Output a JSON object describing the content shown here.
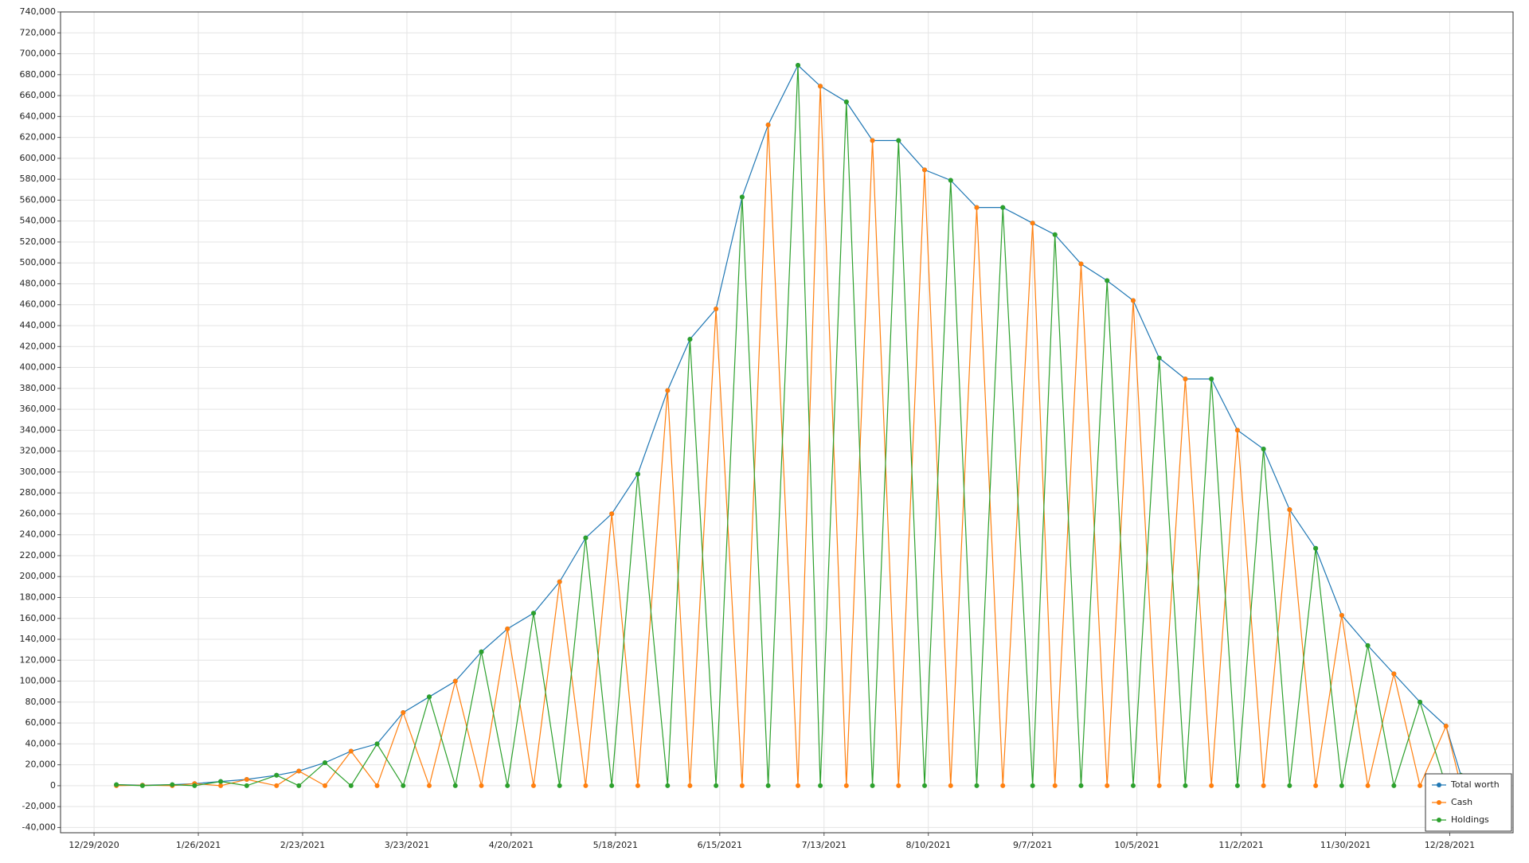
{
  "chart_data": {
    "type": "line",
    "x": [
      "1/4/2021",
      "1/11/2021",
      "1/19/2021",
      "1/25/2021",
      "2/1/2021",
      "2/8/2021",
      "2/16/2021",
      "2/22/2021",
      "3/1/2021",
      "3/8/2021",
      "3/15/2021",
      "3/22/2021",
      "3/29/2021",
      "4/5/2021",
      "4/12/2021",
      "4/19/2021",
      "4/26/2021",
      "5/3/2021",
      "5/10/2021",
      "5/17/2021",
      "5/24/2021",
      "6/1/2021",
      "6/7/2021",
      "6/14/2021",
      "6/21/2021",
      "6/28/2021",
      "7/6/2021",
      "7/12/2021",
      "7/19/2021",
      "7/26/2021",
      "8/2/2021",
      "8/9/2021",
      "8/16/2021",
      "8/23/2021",
      "8/30/2021",
      "9/7/2021",
      "9/13/2021",
      "9/20/2021",
      "9/27/2021",
      "10/4/2021",
      "10/11/2021",
      "10/18/2021",
      "10/25/2021",
      "11/1/2021",
      "11/8/2021",
      "11/15/2021",
      "11/22/2021",
      "11/29/2021",
      "12/6/2021",
      "12/13/2021",
      "12/20/2021",
      "12/27/2021",
      "12/31/2021"
    ],
    "series": [
      {
        "name": "Total worth",
        "color": "#1f77b4",
        "values": [
          1000,
          500,
          1000,
          2000,
          4000,
          6000,
          10000,
          14000,
          22000,
          33000,
          40000,
          70000,
          85000,
          100000,
          128000,
          150000,
          165000,
          195000,
          237000,
          260000,
          298000,
          378000,
          427000,
          456000,
          563000,
          632000,
          689000,
          669000,
          654000,
          617000,
          617000,
          589000,
          579000,
          553000,
          553000,
          538000,
          527000,
          499000,
          483000,
          464000,
          409000,
          389000,
          389000,
          340000,
          322000,
          264000,
          227000,
          163000,
          134000,
          107000,
          80000,
          57000,
          10000
        ]
      },
      {
        "name": "Cash",
        "color": "#ff7f0e",
        "values": [
          0,
          500,
          0,
          2000,
          0,
          6000,
          0,
          14000,
          0,
          33000,
          0,
          70000,
          0,
          100000,
          0,
          150000,
          0,
          195000,
          0,
          260000,
          0,
          378000,
          0,
          456000,
          0,
          632000,
          0,
          669000,
          0,
          617000,
          0,
          589000,
          0,
          553000,
          0,
          538000,
          0,
          499000,
          0,
          464000,
          0,
          389000,
          0,
          340000,
          0,
          264000,
          0,
          163000,
          0,
          107000,
          0,
          57000,
          0
        ]
      },
      {
        "name": "Holdings",
        "color": "#2ca02c",
        "values": [
          1000,
          0,
          1000,
          0,
          4000,
          0,
          10000,
          0,
          22000,
          0,
          40000,
          0,
          85000,
          0,
          128000,
          0,
          165000,
          0,
          237000,
          0,
          298000,
          0,
          427000,
          0,
          563000,
          0,
          689000,
          0,
          654000,
          0,
          617000,
          0,
          579000,
          0,
          553000,
          0,
          527000,
          0,
          483000,
          0,
          409000,
          0,
          389000,
          0,
          322000,
          0,
          227000,
          0,
          134000,
          0,
          80000,
          0,
          10000
        ]
      }
    ],
    "xlim": [
      "12/20/2020",
      "1/14/2022"
    ],
    "xticks": [
      "12/29/2020",
      "1/26/2021",
      "2/23/2021",
      "3/23/2021",
      "4/20/2021",
      "5/18/2021",
      "6/15/2021",
      "7/13/2021",
      "8/10/2021",
      "9/7/2021",
      "10/5/2021",
      "11/2/2021",
      "11/30/2021",
      "12/28/2021"
    ],
    "ylim": [
      -45000,
      740000
    ],
    "yticks": [
      {
        "value": -40000,
        "label": "-40,000"
      },
      {
        "value": -20000,
        "label": "-20,000"
      },
      0,
      {
        "value": 20000,
        "label": "20,000"
      },
      {
        "value": 40000,
        "label": "40,000"
      },
      {
        "value": 60000,
        "label": "60,000"
      },
      {
        "value": 80000,
        "label": "80,000"
      },
      {
        "value": 100000,
        "label": "100,000"
      },
      {
        "value": 120000,
        "label": "120,000"
      },
      {
        "value": 140000,
        "label": "140,000"
      },
      {
        "value": 160000,
        "label": "160,000"
      },
      {
        "value": 180000,
        "label": "180,000"
      },
      {
        "value": 200000,
        "label": "200,000"
      },
      {
        "value": 220000,
        "label": "220,000"
      },
      {
        "value": 240000,
        "label": "240,000"
      },
      {
        "value": 260000,
        "label": "260,000"
      },
      {
        "value": 280000,
        "label": "280,000"
      },
      {
        "value": 300000,
        "label": "300,000"
      },
      {
        "value": 320000,
        "label": "320,000"
      },
      {
        "value": 340000,
        "label": "340,000"
      },
      {
        "value": 360000,
        "label": "360,000"
      },
      {
        "value": 380000,
        "label": "380,000"
      },
      {
        "value": 400000,
        "label": "400,000"
      },
      {
        "value": 420000,
        "label": "420,000"
      },
      {
        "value": 440000,
        "label": "440,000"
      },
      {
        "value": 460000,
        "label": "460,000"
      },
      {
        "value": 480000,
        "label": "480,000"
      },
      {
        "value": 500000,
        "label": "500,000"
      },
      {
        "value": 520000,
        "label": "520,000"
      },
      {
        "value": 540000,
        "label": "540,000"
      },
      {
        "value": 560000,
        "label": "560,000"
      },
      {
        "value": 580000,
        "label": "580,000"
      },
      {
        "value": 600000,
        "label": "600,000"
      },
      {
        "value": 620000,
        "label": "620,000"
      },
      {
        "value": 640000,
        "label": "640,000"
      },
      {
        "value": 660000,
        "label": "660,000"
      },
      {
        "value": 680000,
        "label": "680,000"
      },
      {
        "value": 700000,
        "label": "700,000"
      },
      {
        "value": 720000,
        "label": "720,000"
      },
      {
        "value": 740000,
        "label": "740,000"
      }
    ],
    "grid": true,
    "legend": "bottom-right"
  }
}
